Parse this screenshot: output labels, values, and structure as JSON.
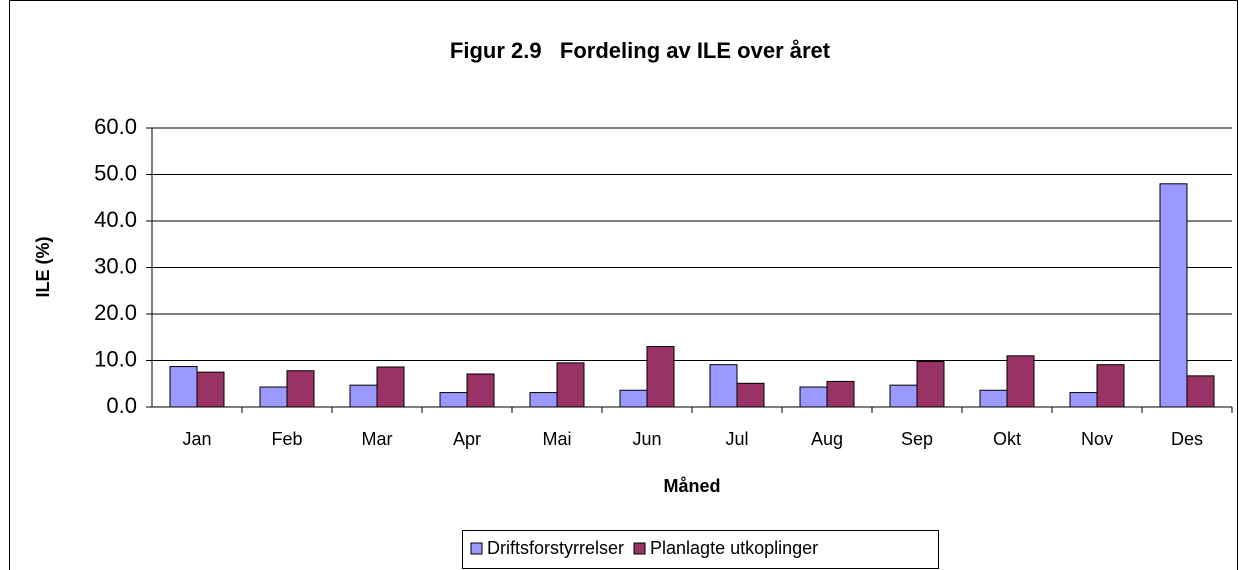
{
  "chart_data": {
    "type": "bar",
    "title": "Figur 2.9   Fordeling av ILE over året",
    "x_label": "Måned",
    "y_label": "ILE (%)",
    "categories": [
      "Jan",
      "Feb",
      "Mar",
      "Apr",
      "Mai",
      "Jun",
      "Jul",
      "Aug",
      "Sep",
      "Okt",
      "Nov",
      "Des"
    ],
    "series": [
      {
        "name": "Driftsforstyrrelser",
        "color": "#9999ff",
        "values": [
          8.7,
          4.3,
          4.7,
          3.1,
          3.1,
          3.6,
          9.1,
          4.3,
          4.7,
          3.6,
          3.1,
          48.0
        ]
      },
      {
        "name": "Planlagte utkoplinger",
        "color": "#993366",
        "values": [
          7.5,
          7.8,
          8.6,
          7.1,
          9.5,
          13.0,
          5.1,
          5.5,
          9.8,
          11.0,
          9.1,
          6.7
        ]
      }
    ],
    "ylim": [
      0,
      60
    ],
    "yticks": [
      {
        "value": 0,
        "label": "0.0"
      },
      {
        "value": 10,
        "label": "10.0"
      },
      {
        "value": 20,
        "label": "20.0"
      },
      {
        "value": 30,
        "label": "30.0"
      },
      {
        "value": 40,
        "label": "40.0"
      },
      {
        "value": 50,
        "label": "50.0"
      },
      {
        "value": 60,
        "label": "60.0"
      }
    ],
    "grid": true,
    "legend": "bottom"
  }
}
